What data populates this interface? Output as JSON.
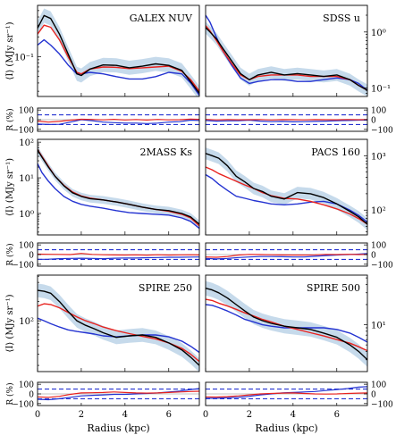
{
  "chart_data": {
    "type": "line",
    "x_axis": {
      "label": "Radius (kpc)",
      "ticks": [
        "0",
        "2",
        "4",
        "6"
      ],
      "range": [
        0,
        7.4
      ]
    },
    "y_label_profile": "⟨I⟩ (MJy sr⁻¹)",
    "y_label_residual": "R (%)",
    "residual_axis": {
      "range": [
        -120,
        120
      ],
      "ticks": [
        "100",
        "0",
        "−100"
      ],
      "dashed_reference": [
        50,
        -50
      ]
    },
    "series_colors": {
      "observed": "#000000",
      "observed_uncertainty": "#bcd4e8",
      "model_a": "#e8231f",
      "model_b": "#2433d1"
    },
    "panels": [
      {
        "title": "GALEX NUV",
        "log": true,
        "ylim": [
          0.025,
          0.6
        ],
        "y_ticks": [
          {
            "v": 0.1,
            "label": "10⁻¹"
          }
        ],
        "x": [
          0,
          0.3,
          0.6,
          1.0,
          1.4,
          1.8,
          2.0,
          2.4,
          3.0,
          3.6,
          4.2,
          4.8,
          5.4,
          6.0,
          6.6,
          7.0,
          7.4
        ],
        "observed": [
          0.27,
          0.42,
          0.38,
          0.22,
          0.11,
          0.055,
          0.052,
          0.065,
          0.075,
          0.074,
          0.068,
          0.072,
          0.078,
          0.074,
          0.062,
          0.042,
          0.028
        ],
        "model_a": [
          0.22,
          0.3,
          0.28,
          0.18,
          0.1,
          0.058,
          0.055,
          0.065,
          0.07,
          0.069,
          0.066,
          0.068,
          0.07,
          0.072,
          0.06,
          0.045,
          0.03
        ],
        "model_b": [
          0.15,
          0.18,
          0.15,
          0.11,
          0.075,
          0.055,
          0.055,
          0.058,
          0.055,
          0.05,
          0.046,
          0.046,
          0.05,
          0.058,
          0.055,
          0.04,
          0.026
        ],
        "residual_x": [
          0,
          0.5,
          1.0,
          1.5,
          2.0,
          2.5,
          3.0,
          3.5,
          4.0,
          4.5,
          5.0,
          5.5,
          6.0,
          6.5,
          7.0,
          7.4
        ],
        "residual_a": [
          -15,
          -25,
          -18,
          -5,
          5,
          3,
          -2,
          4,
          -3,
          2,
          -4,
          3,
          -2,
          0,
          6,
          4
        ],
        "residual_b": [
          -45,
          -50,
          -48,
          -25,
          0,
          -10,
          -25,
          -30,
          -35,
          -35,
          -40,
          -35,
          -25,
          -20,
          -5,
          -8
        ]
      },
      {
        "title": "SDSS u",
        "log": true,
        "ylim": [
          0.07,
          3.0
        ],
        "y_ticks": [
          {
            "v": 1,
            "label": "10⁰"
          },
          {
            "v": 0.1,
            "label": "10⁻¹"
          }
        ],
        "x": [
          0,
          0.2,
          0.5,
          0.8,
          1.2,
          1.6,
          2.0,
          2.4,
          3.0,
          3.6,
          4.2,
          4.8,
          5.4,
          6.0,
          6.6,
          7.0,
          7.4
        ],
        "observed": [
          1.2,
          1.0,
          0.75,
          0.5,
          0.3,
          0.18,
          0.14,
          0.17,
          0.19,
          0.17,
          0.18,
          0.17,
          0.16,
          0.17,
          0.14,
          0.11,
          0.09
        ],
        "model_a": [
          1.3,
          1.05,
          0.7,
          0.45,
          0.27,
          0.17,
          0.14,
          0.16,
          0.17,
          0.17,
          0.17,
          0.16,
          0.16,
          0.16,
          0.14,
          0.11,
          0.09
        ],
        "model_b": [
          2.0,
          1.5,
          0.8,
          0.45,
          0.25,
          0.15,
          0.12,
          0.13,
          0.14,
          0.14,
          0.13,
          0.13,
          0.14,
          0.15,
          0.14,
          0.12,
          0.09
        ],
        "residual_x": [
          0,
          0.5,
          1.0,
          1.5,
          2.0,
          2.5,
          3.0,
          3.5,
          4.0,
          4.5,
          5.0,
          5.5,
          6.0,
          6.5,
          7.0,
          7.4
        ],
        "residual_a": [
          3,
          -2,
          1,
          -1,
          0,
          2,
          -3,
          1,
          0,
          -2,
          1,
          0,
          -1,
          2,
          0,
          1
        ],
        "residual_b": [
          -8,
          -15,
          -12,
          -10,
          -5,
          -15,
          -20,
          -18,
          -22,
          -20,
          -18,
          -15,
          -10,
          -8,
          -5,
          -4
        ]
      },
      {
        "title": "2MASS Ks",
        "log": true,
        "ylim": [
          0.25,
          120
        ],
        "y_ticks": [
          {
            "v": 100,
            "label": "10²"
          },
          {
            "v": 10,
            "label": "10¹"
          },
          {
            "v": 1,
            "label": "10⁰"
          }
        ],
        "x": [
          0,
          0.2,
          0.5,
          0.8,
          1.2,
          1.6,
          2.0,
          2.4,
          3.0,
          3.6,
          4.2,
          4.8,
          5.4,
          6.0,
          6.6,
          7.0,
          7.4
        ],
        "observed": [
          60,
          38,
          20,
          11,
          6,
          3.8,
          3.0,
          2.6,
          2.4,
          2.1,
          1.8,
          1.5,
          1.3,
          1.2,
          1.0,
          0.8,
          0.5
        ],
        "model_a": [
          62,
          40,
          21,
          11,
          6.2,
          4.0,
          3.1,
          2.7,
          2.4,
          2.1,
          1.8,
          1.5,
          1.3,
          1.15,
          0.95,
          0.75,
          0.45
        ],
        "model_b": [
          25,
          14,
          8,
          5,
          3,
          2.2,
          1.8,
          1.6,
          1.4,
          1.2,
          1.05,
          1.0,
          0.95,
          0.9,
          0.75,
          0.6,
          0.38
        ],
        "residual_x": [
          0,
          0.5,
          1.0,
          1.5,
          2.0,
          2.5,
          3.0,
          3.5,
          4.0,
          4.5,
          5.0,
          5.5,
          6.0,
          6.5,
          7.0,
          7.4
        ],
        "residual_a": [
          5,
          3,
          2,
          0,
          12,
          2,
          -2,
          -4,
          -5,
          -3,
          -6,
          -2,
          -5,
          -3,
          -2,
          -4
        ],
        "residual_b": [
          -50,
          -48,
          -42,
          -40,
          -38,
          -40,
          -42,
          -38,
          -35,
          -36,
          -32,
          -30,
          -28,
          -28,
          -26,
          -25
        ]
      },
      {
        "title": "PACS 160",
        "log": true,
        "ylim": [
          35,
          2000
        ],
        "y_ticks": [
          {
            "v": 1000,
            "label": "10³"
          },
          {
            "v": 100,
            "label": "10²"
          }
        ],
        "x": [
          0,
          0.3,
          0.6,
          1.0,
          1.4,
          1.8,
          2.2,
          2.6,
          3.0,
          3.6,
          4.2,
          4.8,
          5.4,
          6.0,
          6.6,
          7.0,
          7.4
        ],
        "observed": [
          1100,
          1000,
          900,
          650,
          420,
          330,
          250,
          220,
          180,
          160,
          210,
          200,
          170,
          130,
          95,
          75,
          55
        ],
        "model_a": [
          620,
          550,
          470,
          400,
          340,
          290,
          250,
          210,
          185,
          165,
          160,
          145,
          125,
          105,
          85,
          70,
          55
        ],
        "model_b": [
          450,
          380,
          300,
          230,
          180,
          165,
          150,
          140,
          130,
          125,
          130,
          140,
          145,
          130,
          100,
          80,
          60
        ],
        "residual_x": [
          0,
          0.5,
          1.0,
          1.5,
          2.0,
          2.5,
          3.0,
          3.5,
          4.0,
          4.5,
          5.0,
          5.5,
          6.0,
          6.5,
          7.0,
          7.4
        ],
        "residual_a": [
          -25,
          -28,
          -20,
          -5,
          2,
          0,
          -2,
          -4,
          -5,
          -5,
          -3,
          2,
          0,
          3,
          0,
          2
        ],
        "residual_b": [
          -40,
          -45,
          -40,
          -30,
          -25,
          -20,
          -20,
          -22,
          -25,
          -25,
          -18,
          -10,
          -5,
          0,
          5,
          10
        ]
      },
      {
        "title": "SPIRE 250",
        "log": true,
        "ylim": [
          16,
          520
        ],
        "y_ticks": [
          {
            "v": 100,
            "label": "10²"
          }
        ],
        "x": [
          0,
          0.3,
          0.6,
          1.0,
          1.4,
          1.8,
          2.2,
          2.6,
          3.0,
          3.6,
          4.2,
          4.8,
          5.4,
          6.0,
          6.6,
          7.0,
          7.4
        ],
        "observed": [
          300,
          290,
          270,
          200,
          140,
          100,
          85,
          75,
          65,
          55,
          58,
          60,
          55,
          45,
          35,
          27,
          20
        ],
        "model_a": [
          170,
          185,
          180,
          160,
          135,
          115,
          100,
          90,
          80,
          70,
          63,
          57,
          52,
          45,
          37,
          30,
          23
        ],
        "model_b": [
          110,
          100,
          90,
          80,
          72,
          68,
          65,
          62,
          58,
          56,
          58,
          60,
          60,
          56,
          48,
          40,
          32
        ],
        "residual_x": [
          0,
          0.5,
          1.0,
          1.5,
          2.0,
          2.5,
          3.0,
          3.5,
          4.0,
          4.5,
          5.0,
          5.5,
          6.0,
          6.5,
          7.0,
          7.4
        ],
        "residual_a": [
          -30,
          -35,
          -25,
          -5,
          10,
          12,
          15,
          20,
          15,
          10,
          8,
          10,
          15,
          20,
          25,
          28
        ],
        "residual_b": [
          -55,
          -60,
          -50,
          -35,
          -20,
          -15,
          -10,
          -5,
          -5,
          0,
          5,
          10,
          20,
          30,
          45,
          55
        ]
      },
      {
        "title": "SPIRE 500",
        "log": true,
        "ylim": [
          2.0,
          55
        ],
        "y_ticks": [
          {
            "v": 10,
            "label": "10¹"
          }
        ],
        "x": [
          0,
          0.3,
          0.6,
          1.0,
          1.4,
          1.8,
          2.2,
          2.6,
          3.0,
          3.6,
          4.2,
          4.8,
          5.4,
          6.0,
          6.6,
          7.0,
          7.4
        ],
        "observed": [
          35,
          33,
          30,
          25,
          20,
          16,
          13,
          11.5,
          10.5,
          9.5,
          9,
          8.5,
          7.5,
          6.5,
          5,
          4,
          3
        ],
        "model_a": [
          24,
          23,
          21,
          19,
          17,
          15,
          13.5,
          12,
          11,
          9.5,
          8.5,
          7.6,
          6.8,
          6,
          5.3,
          4.7,
          4.1
        ],
        "model_b": [
          20,
          19.5,
          18,
          16,
          14,
          12,
          11,
          10,
          9.5,
          9,
          9,
          9,
          9,
          8.5,
          7.5,
          6.5,
          5.5
        ],
        "residual_x": [
          0,
          0.5,
          1.0,
          1.5,
          2.0,
          2.5,
          3.0,
          3.5,
          4.0,
          4.5,
          5.0,
          5.5,
          6.0,
          6.5,
          7.0,
          7.4
        ],
        "residual_a": [
          -30,
          -32,
          -28,
          -20,
          -10,
          0,
          5,
          8,
          10,
          5,
          0,
          -2,
          0,
          5,
          8,
          10
        ],
        "residual_b": [
          -45,
          -45,
          -40,
          -35,
          -25,
          -10,
          0,
          10,
          15,
          20,
          25,
          35,
          45,
          55,
          70,
          75
        ]
      }
    ]
  }
}
